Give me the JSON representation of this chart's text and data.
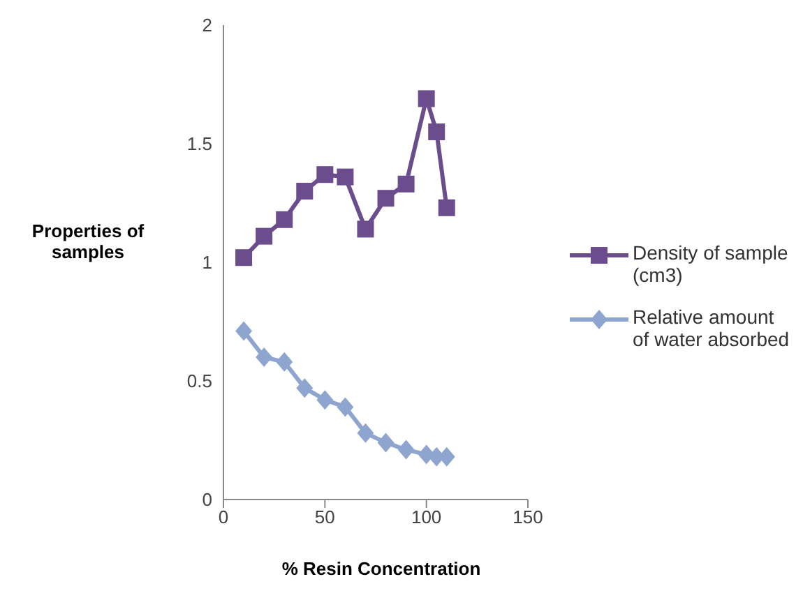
{
  "chart_data": {
    "type": "line",
    "xlabel": "% Resin Concentration",
    "ylabel": "Properties of samples",
    "x": [
      10,
      20,
      30,
      40,
      50,
      60,
      70,
      80,
      90,
      100,
      105,
      110
    ],
    "series": [
      {
        "name": "Density of sample (cm3)",
        "color": "#6b4c8c",
        "marker": "square",
        "values": [
          1.02,
          1.11,
          1.18,
          1.3,
          1.37,
          1.36,
          1.14,
          1.27,
          1.33,
          1.69,
          1.55,
          1.23
        ]
      },
      {
        "name": "Relative amount of water absorbed",
        "color": "#8ea6cf",
        "marker": "diamond",
        "values": [
          0.71,
          0.6,
          0.58,
          0.47,
          0.42,
          0.39,
          0.28,
          0.24,
          0.21,
          0.19,
          0.18,
          0.18
        ]
      }
    ],
    "xlim": [
      0,
      150
    ],
    "xticks": [
      0,
      50,
      100,
      150
    ],
    "ylim": [
      0,
      2
    ],
    "yticks": [
      0,
      0.5,
      1,
      1.5,
      2
    ],
    "grid": false,
    "legend": "right"
  }
}
